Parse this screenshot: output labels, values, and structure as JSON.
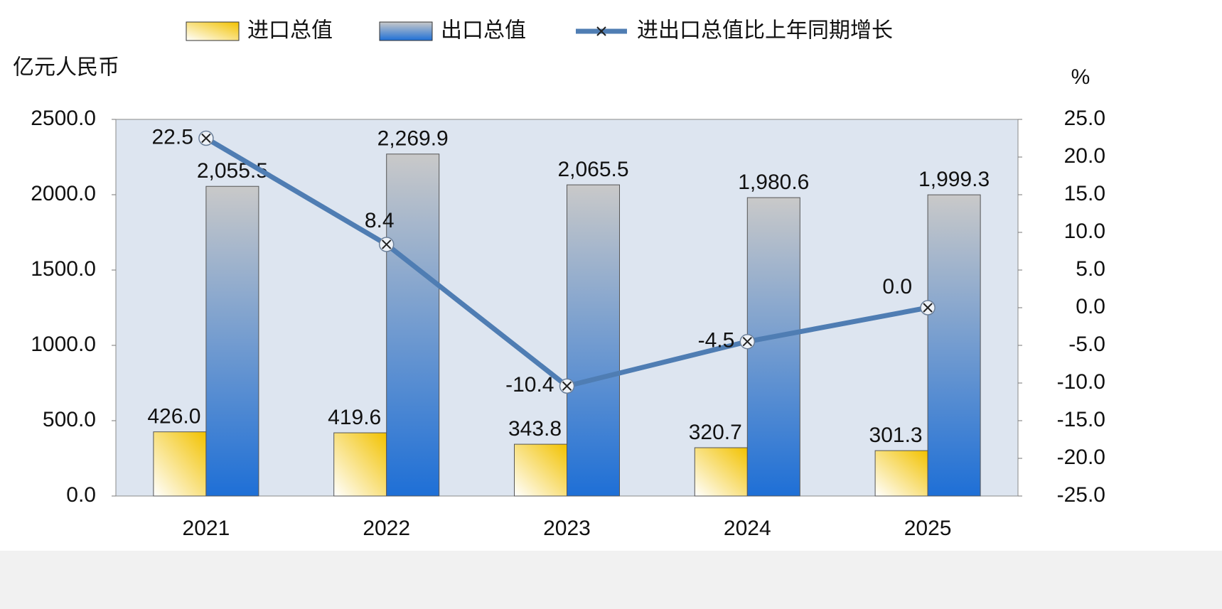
{
  "chart_data": {
    "type": "bar",
    "y_axis_label": "亿元人民币",
    "y2_axis_label": "%",
    "categories": [
      "2021",
      "2022",
      "2023",
      "2024",
      "2025"
    ],
    "series": [
      {
        "name": "进口总值",
        "color": "#f2c200",
        "values": [
          426.0,
          419.6,
          343.8,
          320.7,
          301.3
        ],
        "value_labels": [
          "426.0",
          "419.6",
          "343.8",
          "320.7",
          "301.3"
        ]
      },
      {
        "name": "出口总值",
        "color": "#1e6fd6",
        "values": [
          2055.5,
          2269.9,
          2065.5,
          1980.6,
          1999.3
        ],
        "value_labels": [
          "2,055.5",
          "2,269.9",
          "2,065.5",
          "1,980.6",
          "1,999.3"
        ]
      },
      {
        "name": "进出口总值比上年同期增长",
        "type": "line",
        "axis": "y2",
        "color": "#4f7db3",
        "label_color": "#c0172c",
        "values": [
          22.5,
          8.4,
          -10.4,
          -4.5,
          0.0
        ],
        "value_labels": [
          "22.5",
          "8.4",
          "-10.4",
          "-4.5",
          "0.0"
        ]
      }
    ],
    "ylim": [
      0,
      2500
    ],
    "yticks": [
      {
        "value": 0,
        "label": "0.0"
      },
      {
        "value": 500,
        "label": "500.0"
      },
      {
        "value": 1000,
        "label": "1000.0"
      },
      {
        "value": 1500,
        "label": "1500.0"
      },
      {
        "value": 2000,
        "label": "2000.0"
      },
      {
        "value": 2500,
        "label": "2500.0"
      }
    ],
    "y2lim": [
      -25,
      25
    ],
    "y2ticks": [
      {
        "value": -25,
        "label": "-25.0"
      },
      {
        "value": -20,
        "label": "-20.0"
      },
      {
        "value": -15,
        "label": "-15.0"
      },
      {
        "value": -10,
        "label": "-10.0"
      },
      {
        "value": -5,
        "label": "-5.0"
      },
      {
        "value": 0,
        "label": "0.0"
      },
      {
        "value": 5,
        "label": "5.0"
      },
      {
        "value": 10,
        "label": "10.0"
      },
      {
        "value": 15,
        "label": "15.0"
      },
      {
        "value": 20,
        "label": "20.0"
      },
      {
        "value": 25,
        "label": "25.0"
      }
    ],
    "grid": false
  }
}
